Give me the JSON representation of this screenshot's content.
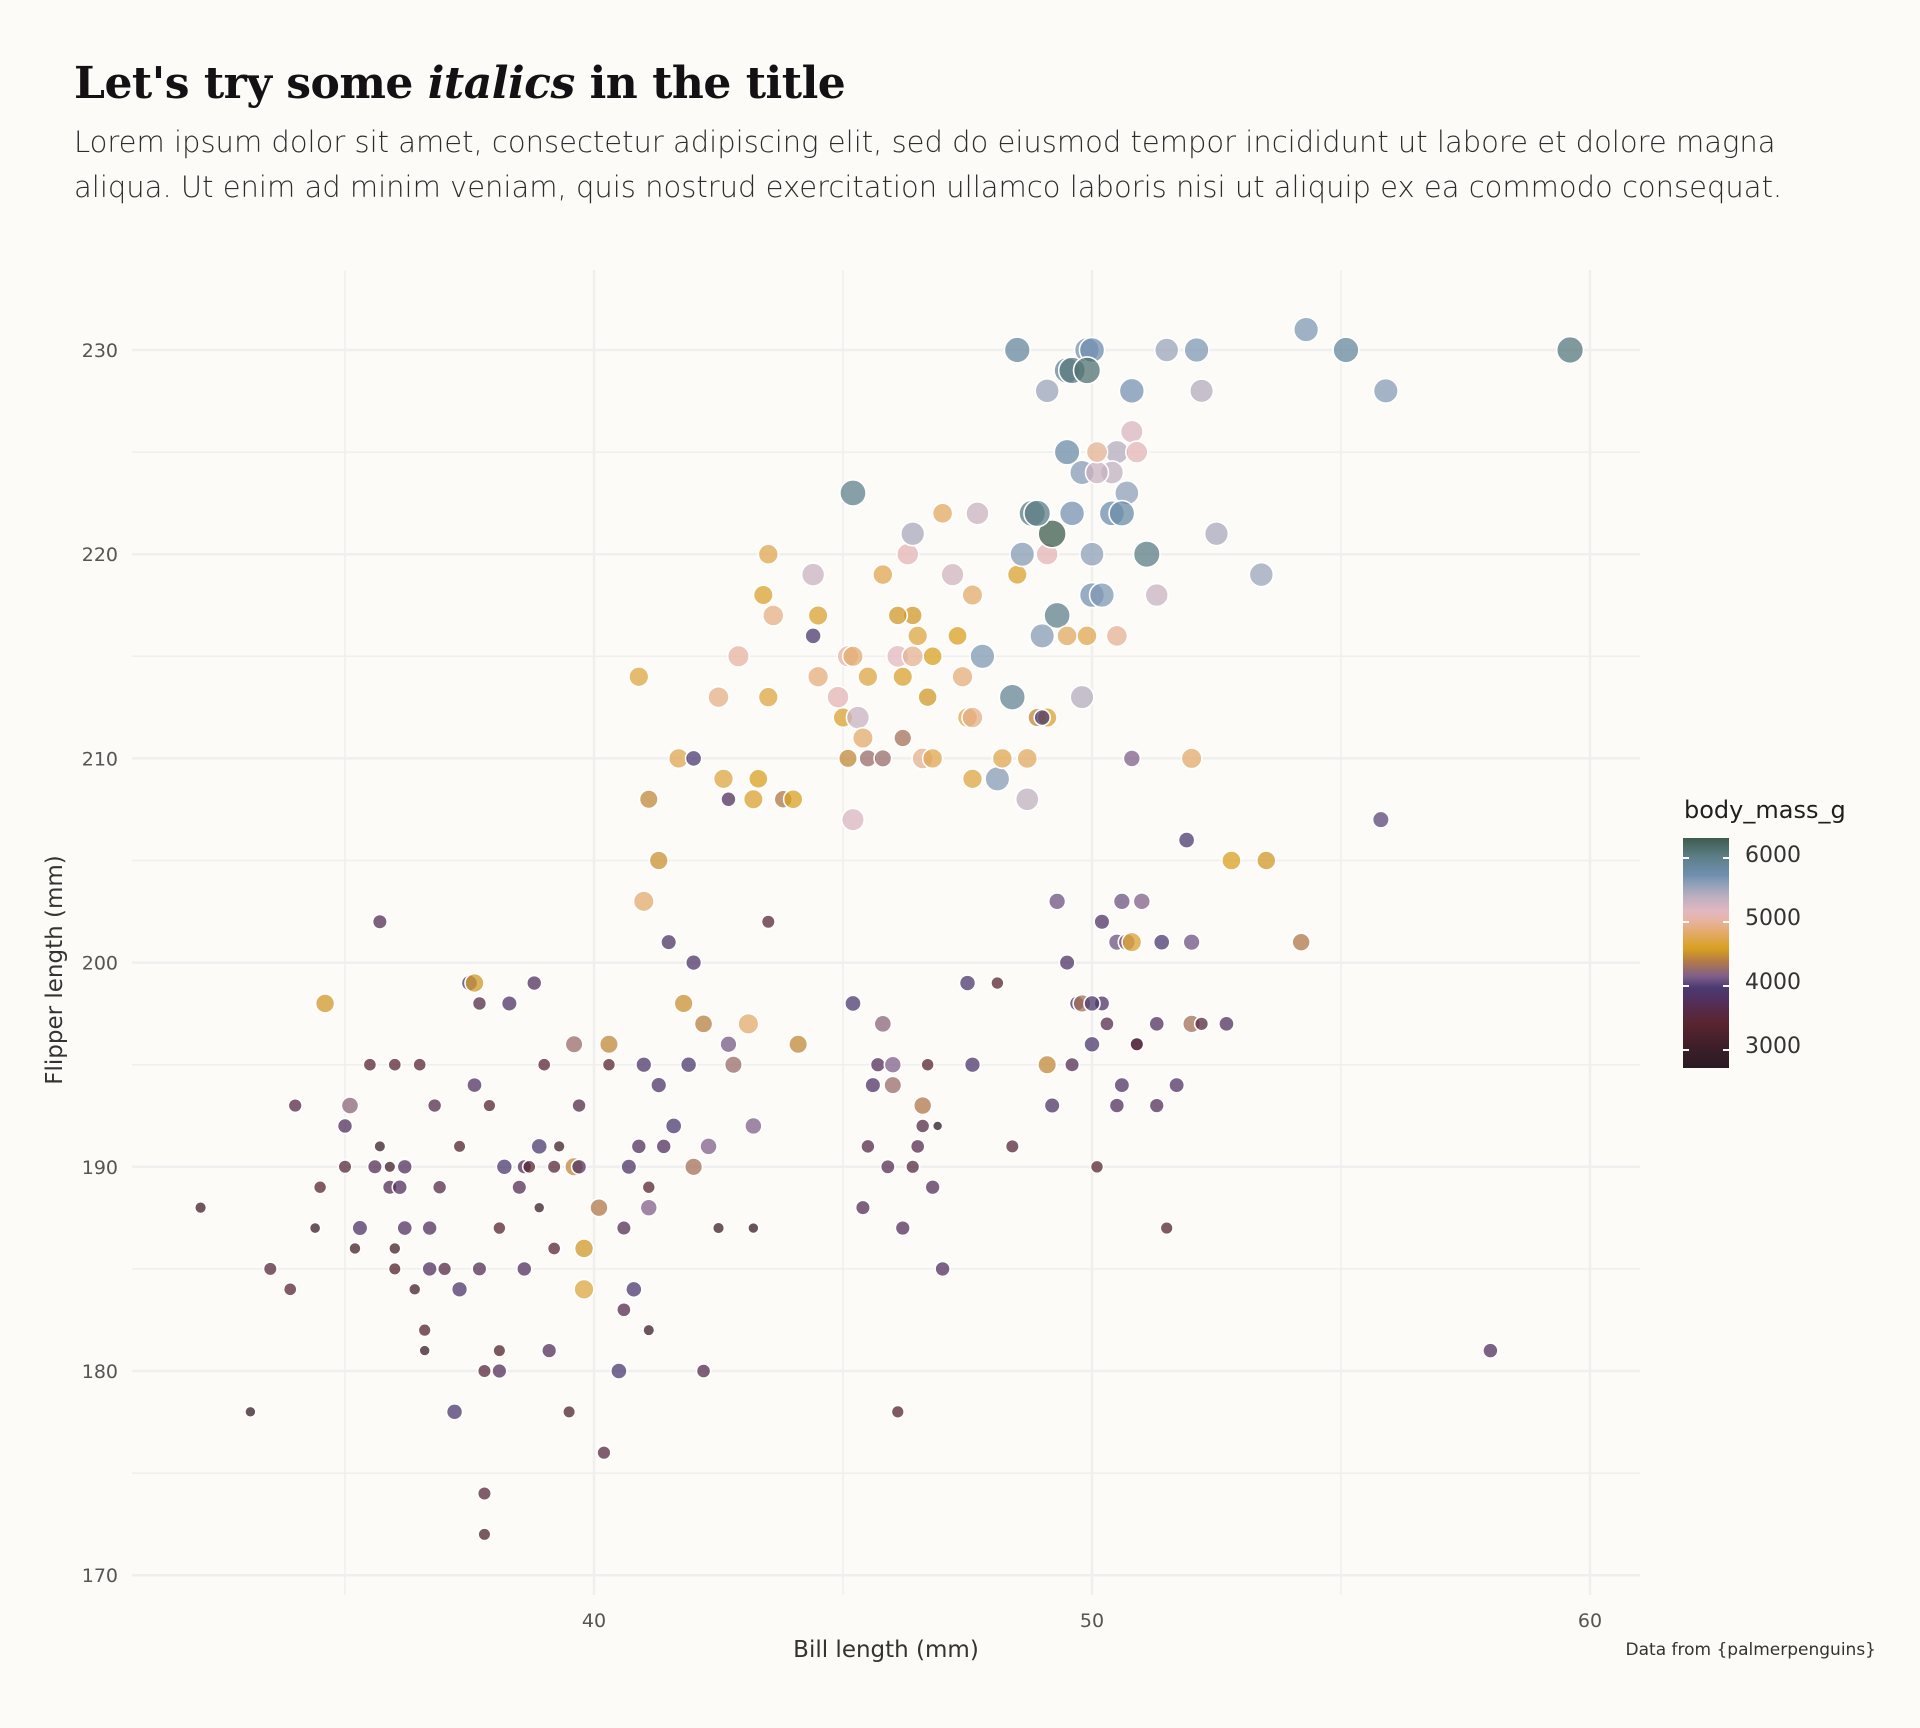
{
  "title": {
    "before": "Let's try some ",
    "italic": "italics",
    "after": " in the title"
  },
  "subtitle": "Lorem ipsum dolor sit amet, consectetur adipiscing elit, sed do eiusmod tempor incididunt ut labore et dolore magna aliqua. Ut enim ad minim veniam, quis nostrud exercitation ullamco laboris nisi ut aliquip ex ea commodo consequat.",
  "caption": "Data from {palmerpenguins}",
  "legend": {
    "title": "body_mass_g",
    "labels": [
      "6000",
      "5000",
      "4000",
      "3000"
    ]
  },
  "chart_data": {
    "type": "scatter",
    "title": "Let's try some italics in the title",
    "xlabel": "Bill length (mm)",
    "ylabel": "Flipper length (mm)",
    "xlim": [
      31.5,
      61
    ],
    "ylim": [
      169,
      234
    ],
    "x_ticks": [
      40,
      50,
      60
    ],
    "y_ticks": [
      170,
      180,
      190,
      200,
      210,
      220,
      230
    ],
    "grid": true,
    "legend_position": "right",
    "color_var": "body_mass_g",
    "size_var": "body_mass_g",
    "color_range": [
      2700,
      6300
    ],
    "points": [
      [
        32.1,
        188,
        3050
      ],
      [
        33.1,
        178,
        2900
      ],
      [
        33.5,
        185,
        3400
      ],
      [
        33.9,
        184,
        3350
      ],
      [
        34.0,
        193,
        3450
      ],
      [
        34.4,
        187,
        2950
      ],
      [
        34.5,
        189,
        3300
      ],
      [
        34.6,
        198,
        4500
      ],
      [
        35.0,
        190,
        3400
      ],
      [
        35.0,
        192,
        3700
      ],
      [
        35.1,
        193,
        4150
      ],
      [
        35.2,
        186,
        3100
      ],
      [
        35.3,
        187,
        3800
      ],
      [
        35.5,
        195,
        3350
      ],
      [
        35.6,
        190,
        3600
      ],
      [
        35.7,
        191,
        3000
      ],
      [
        35.7,
        202,
        3600
      ],
      [
        35.9,
        189,
        3600
      ],
      [
        35.9,
        190,
        3050
      ],
      [
        36.0,
        185,
        3200
      ],
      [
        36.0,
        186,
        3100
      ],
      [
        36.0,
        195,
        3350
      ],
      [
        36.1,
        189,
        3700
      ],
      [
        36.2,
        187,
        3750
      ],
      [
        36.2,
        190,
        3700
      ],
      [
        36.4,
        184,
        3100
      ],
      [
        36.5,
        195,
        3350
      ],
      [
        36.6,
        182,
        3250
      ],
      [
        36.6,
        181,
        2900
      ],
      [
        36.7,
        185,
        3700
      ],
      [
        36.7,
        187,
        3700
      ],
      [
        36.8,
        193,
        3500
      ],
      [
        36.9,
        189,
        3500
      ],
      [
        37.0,
        185,
        3450
      ],
      [
        37.2,
        178,
        3900
      ],
      [
        37.3,
        184,
        3850
      ],
      [
        37.3,
        191,
        3200
      ],
      [
        37.5,
        199,
        3950
      ],
      [
        37.6,
        194,
        3750
      ],
      [
        37.7,
        198,
        3500
      ],
      [
        37.7,
        185,
        3600
      ],
      [
        37.8,
        180,
        3400
      ],
      [
        37.8,
        174,
        3400
      ],
      [
        37.8,
        172,
        3200
      ],
      [
        37.6,
        199,
        4500
      ],
      [
        37.9,
        193,
        3250
      ],
      [
        38.1,
        180,
        3650
      ],
      [
        38.1,
        181,
        3200
      ],
      [
        38.1,
        187,
        3300
      ],
      [
        38.2,
        190,
        3900
      ],
      [
        38.3,
        198,
        3800
      ],
      [
        38.5,
        189,
        3600
      ],
      [
        38.6,
        190,
        3600
      ],
      [
        38.6,
        185,
        3700
      ],
      [
        38.7,
        190,
        3350
      ],
      [
        38.8,
        199,
        3700
      ],
      [
        38.9,
        191,
        3950
      ],
      [
        39.0,
        195,
        3350
      ],
      [
        39.1,
        181,
        3650
      ],
      [
        39.2,
        190,
        3400
      ],
      [
        39.2,
        186,
        3350
      ],
      [
        39.3,
        191,
        3050
      ],
      [
        39.5,
        178,
        3200
      ],
      [
        39.6,
        196,
        4200
      ],
      [
        39.6,
        190,
        4400
      ],
      [
        39.7,
        193,
        3500
      ],
      [
        39.7,
        190,
        3700
      ],
      [
        39.8,
        184,
        4650
      ],
      [
        39.8,
        186,
        4500
      ],
      [
        40.1,
        188,
        4300
      ],
      [
        40.2,
        176,
        3450
      ],
      [
        40.3,
        196,
        4400
      ],
      [
        40.3,
        195,
        3300
      ],
      [
        40.6,
        187,
        3600
      ],
      [
        40.6,
        183,
        3550
      ],
      [
        40.7,
        190,
        3800
      ],
      [
        40.8,
        184,
        3900
      ],
      [
        40.9,
        191,
        3700
      ],
      [
        41.0,
        195,
        3850
      ],
      [
        41.1,
        188,
        4100
      ],
      [
        41.1,
        189,
        3300
      ],
      [
        41.1,
        182,
        3000
      ],
      [
        41.3,
        194,
        3850
      ],
      [
        41.4,
        191,
        3700
      ],
      [
        41.5,
        201,
        3800
      ],
      [
        41.6,
        192,
        3950
      ],
      [
        41.8,
        198,
        4450
      ],
      [
        42.0,
        200,
        3850
      ],
      [
        42.0,
        190,
        4250
      ],
      [
        42.2,
        197,
        4350
      ],
      [
        42.2,
        180,
        3550
      ],
      [
        42.3,
        191,
        4100
      ],
      [
        42.5,
        187,
        3050
      ],
      [
        42.7,
        196,
        4075
      ],
      [
        42.8,
        195,
        4200
      ],
      [
        43.1,
        197,
        4800
      ],
      [
        43.2,
        192,
        4100
      ],
      [
        43.2,
        187,
        2900
      ],
      [
        41.9,
        195,
        3900
      ],
      [
        43.5,
        202,
        3400
      ],
      [
        44.1,
        196,
        4400
      ],
      [
        40.5,
        180,
        3950
      ],
      [
        38.9,
        188,
        2900
      ],
      [
        40.9,
        214,
        4650
      ],
      [
        41.0,
        203,
        4800
      ],
      [
        41.1,
        208,
        4400
      ],
      [
        41.3,
        205,
        4450
      ],
      [
        41.7,
        210,
        4700
      ],
      [
        42.0,
        210,
        3950
      ],
      [
        42.5,
        213,
        4900
      ],
      [
        42.6,
        209,
        4650
      ],
      [
        42.7,
        208,
        3700
      ],
      [
        42.9,
        215,
        5000
      ],
      [
        43.2,
        208,
        4600
      ],
      [
        43.3,
        209,
        4550
      ],
      [
        43.4,
        218,
        4600
      ],
      [
        43.5,
        220,
        4700
      ],
      [
        43.6,
        217,
        4900
      ],
      [
        43.5,
        213,
        4650
      ],
      [
        43.8,
        208,
        4300
      ],
      [
        44.0,
        208,
        4550
      ],
      [
        44.4,
        219,
        5300
      ],
      [
        44.5,
        214,
        4850
      ],
      [
        44.5,
        217,
        4600
      ],
      [
        44.4,
        216,
        3900
      ],
      [
        44.9,
        213,
        5100
      ],
      [
        45.0,
        212,
        4600
      ],
      [
        45.1,
        215,
        5000
      ],
      [
        45.2,
        215,
        4800
      ],
      [
        45.1,
        210,
        4400
      ],
      [
        45.2,
        207,
        5200
      ],
      [
        45.3,
        212,
        5300
      ],
      [
        45.4,
        211,
        4800
      ],
      [
        45.5,
        214,
        4650
      ],
      [
        45.5,
        210,
        4200
      ],
      [
        45.8,
        210,
        4200
      ],
      [
        45.8,
        219,
        4700
      ],
      [
        46.1,
        215,
        5150
      ],
      [
        46.2,
        211,
        4250
      ],
      [
        46.2,
        214,
        4600
      ],
      [
        46.3,
        220,
        5100
      ],
      [
        46.4,
        217,
        4500
      ],
      [
        46.4,
        221,
        5450
      ],
      [
        46.5,
        216,
        4650
      ],
      [
        46.6,
        210,
        4950
      ],
      [
        46.7,
        213,
        4500
      ],
      [
        46.8,
        215,
        4550
      ],
      [
        46.8,
        210,
        4700
      ],
      [
        47.2,
        219,
        5250
      ],
      [
        47.3,
        216,
        4550
      ],
      [
        47.4,
        214,
        4850
      ],
      [
        47.5,
        212,
        4700
      ],
      [
        47.6,
        212,
        4900
      ],
      [
        47.6,
        218,
        4800
      ],
      [
        47.6,
        209,
        4650
      ],
      [
        47.8,
        215,
        5650
      ],
      [
        47.7,
        222,
        5300
      ],
      [
        47.0,
        222,
        4750
      ],
      [
        48.1,
        209,
        5600
      ],
      [
        48.2,
        210,
        4700
      ],
      [
        48.4,
        213,
        5900
      ],
      [
        48.5,
        219,
        4600
      ],
      [
        48.6,
        220,
        5600
      ],
      [
        48.7,
        210,
        4750
      ],
      [
        48.8,
        222,
        6000
      ],
      [
        48.9,
        212,
        4400
      ],
      [
        49.0,
        216,
        5600
      ],
      [
        49.1,
        212,
        4600
      ],
      [
        49.1,
        220,
        5100
      ],
      [
        49.2,
        221,
        6300
      ],
      [
        49.3,
        217,
        5950
      ],
      [
        49.5,
        216,
        4750
      ],
      [
        49.8,
        213,
        5400
      ],
      [
        49.9,
        216,
        4700
      ],
      [
        50.0,
        218,
        5700
      ],
      [
        50.0,
        220,
        5550
      ],
      [
        50.2,
        218,
        5650
      ],
      [
        50.4,
        222,
        5750
      ],
      [
        50.5,
        216,
        4950
      ],
      [
        50.7,
        223,
        5550
      ],
      [
        51.1,
        220,
        6000
      ],
      [
        51.3,
        218,
        5300
      ],
      [
        52.5,
        221,
        5450
      ],
      [
        53.4,
        219,
        5500
      ],
      [
        46.1,
        217,
        4500
      ],
      [
        46.4,
        215,
        4950
      ],
      [
        48.7,
        208,
        5350
      ],
      [
        48.5,
        230,
        5850
      ],
      [
        49.5,
        229,
        5900
      ],
      [
        49.6,
        229,
        6050
      ],
      [
        49.9,
        230,
        5700
      ],
      [
        50.0,
        230,
        5750
      ],
      [
        49.9,
        229,
        6100
      ],
      [
        49.1,
        228,
        5500
      ],
      [
        50.8,
        228,
        5700
      ],
      [
        51.5,
        230,
        5500
      ],
      [
        52.1,
        230,
        5650
      ],
      [
        52.2,
        228,
        5400
      ],
      [
        54.3,
        231,
        5650
      ],
      [
        55.1,
        230,
        5850
      ],
      [
        55.9,
        228,
        5600
      ],
      [
        59.6,
        230,
        6050
      ],
      [
        49.8,
        224,
        5600
      ],
      [
        49.5,
        225,
        5800
      ],
      [
        50.5,
        225,
        5400
      ],
      [
        50.8,
        226,
        5200
      ],
      [
        50.4,
        224,
        5350
      ],
      [
        50.1,
        224,
        5300
      ],
      [
        50.9,
        225,
        5100
      ],
      [
        50.1,
        225,
        4950
      ],
      [
        45.2,
        223,
        5950
      ],
      [
        49.6,
        222,
        5700
      ],
      [
        50.6,
        222,
        5800
      ],
      [
        48.9,
        222,
        6000
      ],
      [
        45.2,
        198,
        3950
      ],
      [
        45.4,
        188,
        3600
      ],
      [
        45.5,
        191,
        3500
      ],
      [
        45.6,
        194,
        3800
      ],
      [
        45.7,
        195,
        3650
      ],
      [
        45.8,
        197,
        4150
      ],
      [
        46.0,
        194,
        4200
      ],
      [
        46.0,
        195,
        4100
      ],
      [
        46.1,
        178,
        3250
      ],
      [
        46.2,
        187,
        3650
      ],
      [
        46.4,
        190,
        3450
      ],
      [
        46.5,
        191,
        3550
      ],
      [
        46.6,
        193,
        4300
      ],
      [
        46.7,
        195,
        3300
      ],
      [
        46.8,
        189,
        3650
      ],
      [
        47.0,
        185,
        3700
      ],
      [
        45.9,
        190,
        3575
      ],
      [
        46.6,
        192,
        3500
      ],
      [
        46.9,
        192,
        2700
      ],
      [
        47.5,
        199,
        3900
      ],
      [
        47.6,
        195,
        3850
      ],
      [
        48.1,
        199,
        3300
      ],
      [
        48.4,
        191,
        3400
      ],
      [
        49.0,
        212,
        3900
      ],
      [
        49.1,
        195,
        4400
      ],
      [
        49.2,
        193,
        3800
      ],
      [
        49.3,
        203,
        4050
      ],
      [
        49.5,
        200,
        3800
      ],
      [
        49.6,
        195,
        3600
      ],
      [
        49.7,
        198,
        3750
      ],
      [
        49.8,
        198,
        4250
      ],
      [
        50.0,
        196,
        3900
      ],
      [
        50.1,
        190,
        3300
      ],
      [
        50.2,
        202,
        3800
      ],
      [
        50.2,
        198,
        3775
      ],
      [
        50.3,
        197,
        3550
      ],
      [
        50.5,
        193,
        3700
      ],
      [
        50.5,
        201,
        4050
      ],
      [
        50.6,
        203,
        4050
      ],
      [
        50.7,
        201,
        4150
      ],
      [
        50.8,
        210,
        4100
      ],
      [
        50.9,
        196,
        3550
      ],
      [
        51.0,
        203,
        4100
      ],
      [
        51.3,
        193,
        3650
      ],
      [
        51.3,
        197,
        3750
      ],
      [
        51.4,
        201,
        3950
      ],
      [
        51.5,
        187,
        3250
      ],
      [
        51.7,
        194,
        3775
      ],
      [
        51.9,
        206,
        3950
      ],
      [
        52.0,
        201,
        4050
      ],
      [
        52.0,
        210,
        4800
      ],
      [
        52.0,
        197,
        4250
      ],
      [
        52.2,
        197,
        3450
      ],
      [
        52.7,
        197,
        3725
      ],
      [
        53.5,
        205,
        4500
      ],
      [
        52.8,
        205,
        4550
      ],
      [
        54.2,
        201,
        4300
      ],
      [
        55.8,
        207,
        4000
      ],
      [
        58.0,
        181,
        3700
      ],
      [
        50.8,
        201,
        4600
      ],
      [
        50.6,
        194,
        3775
      ],
      [
        50.0,
        198,
        3900
      ],
      [
        50.9,
        196,
        3425
      ]
    ]
  }
}
